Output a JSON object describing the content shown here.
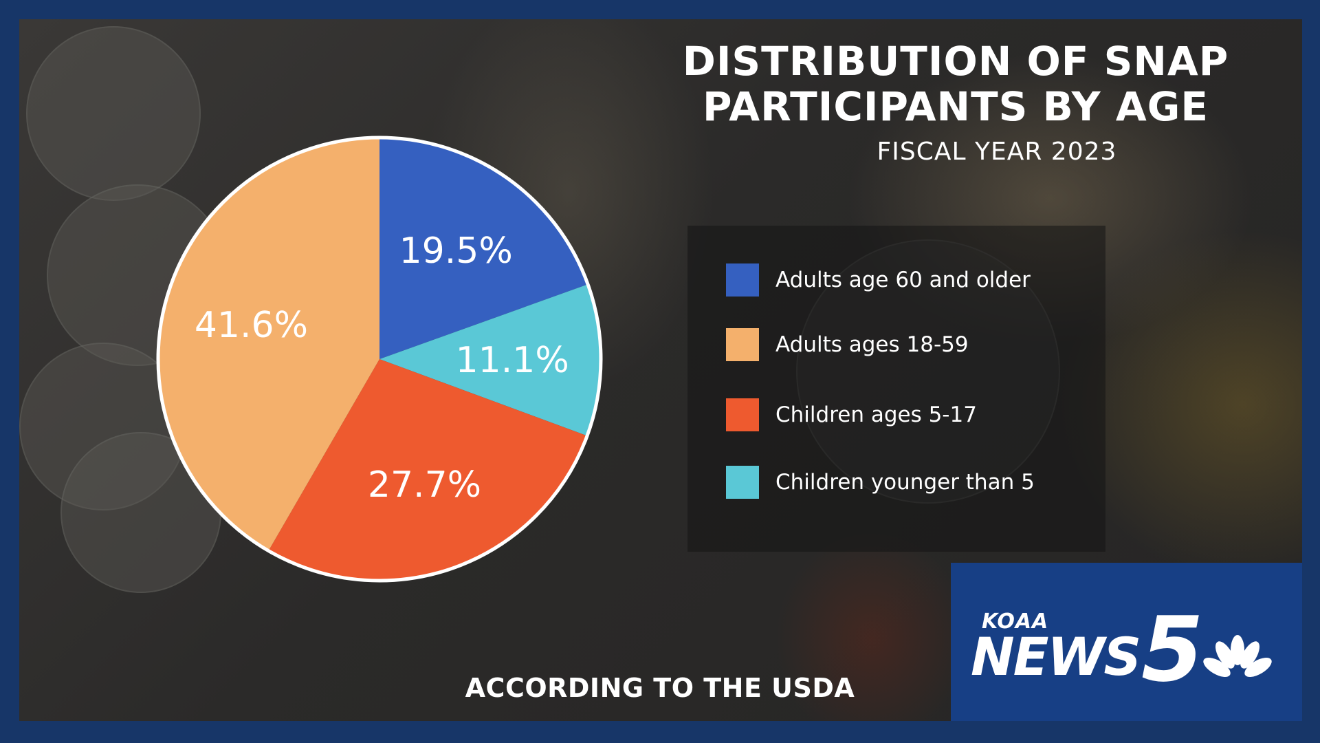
{
  "title_lines": [
    "DISTRIBUTION OF SNAP",
    "PARTICIPANTS BY AGE"
  ],
  "subtitle": "FISCAL YEAR 2023",
  "source": "ACCORDING TO THE USDA",
  "logo": {
    "top": "KOAA",
    "main": "NEWS",
    "number": "5"
  },
  "colors": {
    "frame": "#173668",
    "logo_panel": "#173f85",
    "blue": "#3560c0",
    "cyan": "#5ac8d6",
    "orange_red": "#ee5a2f",
    "peach": "#f4b06c"
  },
  "chart_data": {
    "type": "pie",
    "title": "DISTRIBUTION OF SNAP PARTICIPANTS BY AGE",
    "subtitle": "FISCAL YEAR 2023",
    "unit": "%",
    "slices": [
      {
        "label": "Adults age 60 and older",
        "value": 19.5,
        "display": "19.5%",
        "color": "#3560c0"
      },
      {
        "label": "Children younger than 5",
        "value": 11.1,
        "display": "11.1%",
        "color": "#5ac8d6"
      },
      {
        "label": "Children ages 5-17",
        "value": 27.7,
        "display": "27.7%",
        "color": "#ee5a2f"
      },
      {
        "label": "Adults ages 18-59",
        "value": 41.6,
        "display": "41.6%",
        "color": "#f4b06c"
      }
    ],
    "legend_order": [
      "Adults age 60 and older",
      "Adults ages 18-59",
      "Children ages 5-17",
      "Children younger than 5"
    ],
    "legend_position": "right"
  }
}
